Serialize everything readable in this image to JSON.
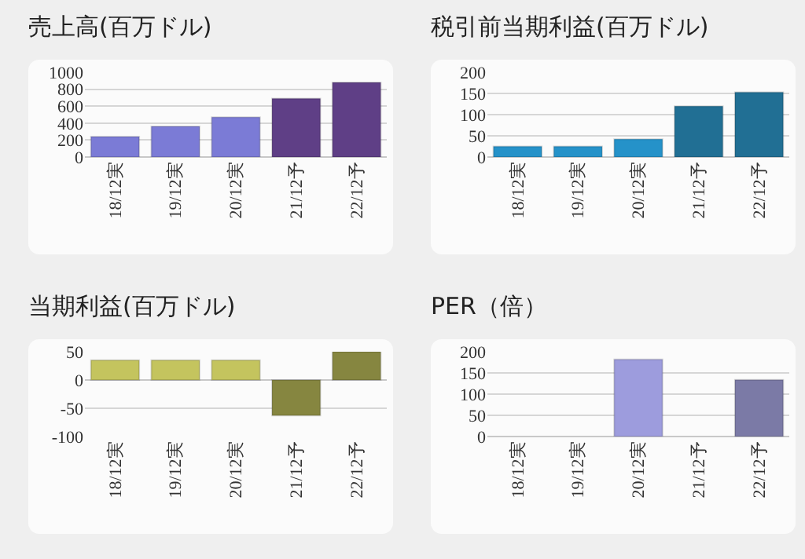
{
  "chart_data": [
    {
      "type": "bar",
      "title": "売上高(百万ドル)",
      "categories": [
        "18/12実",
        "19/12実",
        "20/12実",
        "21/12予",
        "22/12予"
      ],
      "values": [
        240,
        360,
        470,
        690,
        880
      ],
      "colors": [
        "#7b7bd6",
        "#7b7bd6",
        "#7b7bd6",
        "#5f3f86",
        "#5f3f86"
      ],
      "ylim": [
        0,
        1000
      ],
      "yticks": [
        0,
        200,
        400,
        600,
        800,
        1000
      ],
      "grid": "y"
    },
    {
      "type": "bar",
      "title": "税引前当期利益(百万ドル)",
      "categories": [
        "18/12実",
        "19/12実",
        "20/12実",
        "21/12予",
        "22/12予"
      ],
      "values": [
        25,
        25,
        42,
        120,
        153
      ],
      "colors": [
        "#2592c9",
        "#2592c9",
        "#2592c9",
        "#216f94",
        "#216f94"
      ],
      "ylim": [
        0,
        200
      ],
      "yticks": [
        0,
        50,
        100,
        150,
        200
      ],
      "grid": "y"
    },
    {
      "type": "bar",
      "title": "当期利益(百万ドル)",
      "categories": [
        "18/12実",
        "19/12実",
        "20/12実",
        "21/12予",
        "22/12予"
      ],
      "values": [
        35,
        35,
        35,
        -63,
        50
      ],
      "colors": [
        "#c4c45e",
        "#c4c45e",
        "#c4c45e",
        "#868640",
        "#868640"
      ],
      "ylim": [
        -100,
        50
      ],
      "yticks": [
        -100,
        -50,
        0,
        50
      ],
      "grid": "y"
    },
    {
      "type": "bar",
      "title": "PER（倍）",
      "categories": [
        "18/12実",
        "19/12実",
        "20/12実",
        "21/12予",
        "22/12予"
      ],
      "values": [
        null,
        null,
        182,
        null,
        134
      ],
      "colors": [
        "#9d9cdd",
        "#9d9cdd",
        "#9d9cdd",
        "#7b7aa6",
        "#7b7aa6"
      ],
      "ylim": [
        0,
        200
      ],
      "yticks": [
        0,
        50,
        100,
        150,
        200
      ],
      "grid": "y"
    }
  ]
}
